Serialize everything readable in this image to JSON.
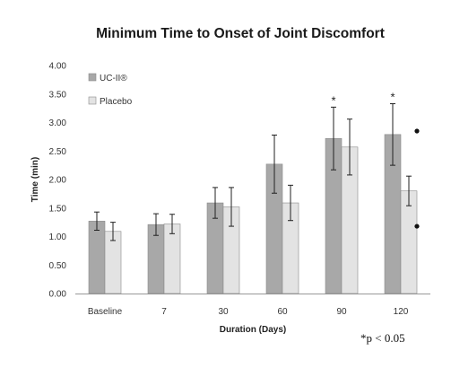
{
  "chart_data": {
    "type": "bar",
    "title": "Minimum Time to Onset of Joint Discomfort",
    "xlabel": "Duration (Days)",
    "ylabel": "Time (min)",
    "ylim": [
      0,
      4
    ],
    "yticks": [
      "0.00",
      "0.50",
      "1.00",
      "1.50",
      "2.00",
      "2.50",
      "3.00",
      "3.50",
      "4.00"
    ],
    "categories": [
      "Baseline",
      "7",
      "30",
      "60",
      "90",
      "120"
    ],
    "series": [
      {
        "name": "UC-II®",
        "color": "#a8a8a8",
        "values": [
          1.27,
          1.21,
          1.59,
          2.27,
          2.72,
          2.79
        ],
        "error": [
          0.16,
          0.19,
          0.27,
          0.51,
          0.55,
          0.54
        ]
      },
      {
        "name": "Placebo",
        "color": "#e3e3e3",
        "values": [
          1.09,
          1.22,
          1.52,
          1.59,
          2.57,
          1.8
        ],
        "error": [
          0.16,
          0.17,
          0.34,
          0.31,
          0.49,
          0.26
        ]
      }
    ],
    "significance": [
      {
        "category": "90",
        "series": "UC-II®",
        "mark": "*"
      },
      {
        "category": "120",
        "series": "UC-II®",
        "mark": "*"
      }
    ],
    "side_markers": [
      {
        "value": 2.85
      },
      {
        "value": 1.18
      }
    ],
    "grid": false,
    "legend_placement": "top-left",
    "footnote": "*p < 0.05"
  }
}
